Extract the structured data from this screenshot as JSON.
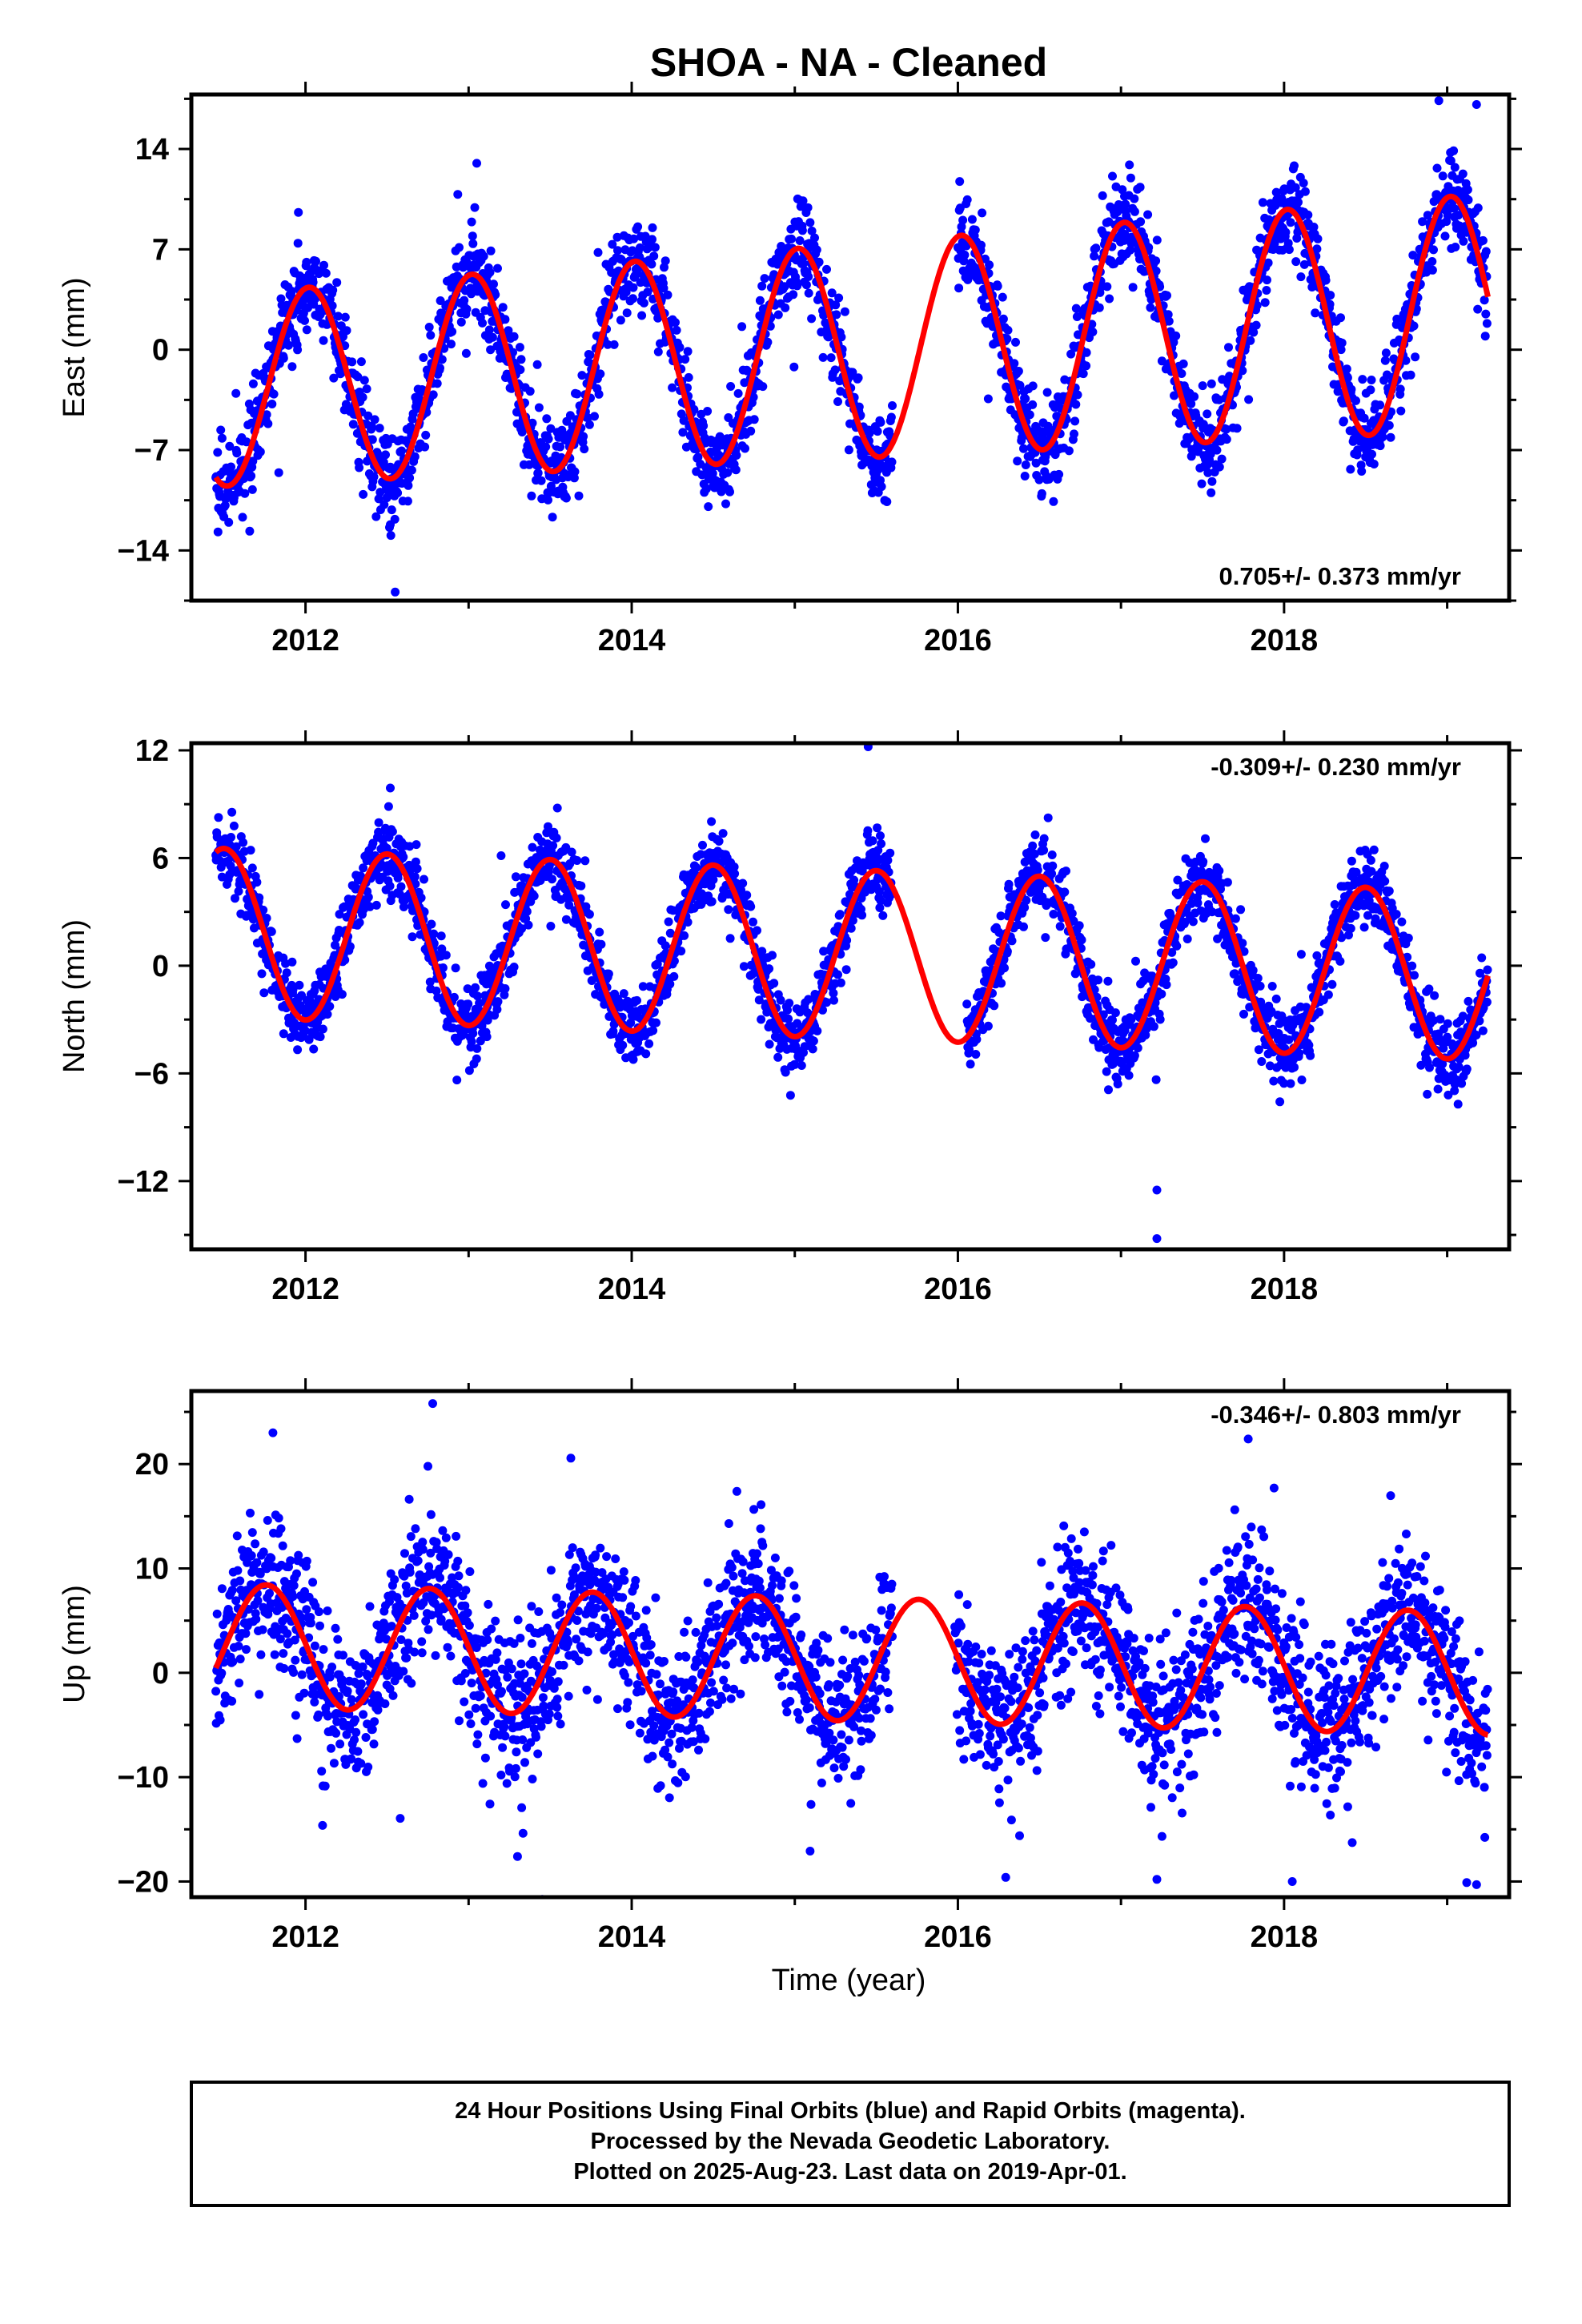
{
  "figure": {
    "title": "SHOA  - NA - Cleaned",
    "xlabel": "Time (year)",
    "footer": [
      "24 Hour Positions Using Final Orbits (blue) and Rapid Orbits (magenta).",
      "Processed by the Nevada Geodetic Laboratory.",
      "Plotted on 2025-Aug-23. Last data on 2019-Apr-01."
    ],
    "colors": {
      "points": "#0000ff",
      "model": "#ff0000",
      "frame": "#000000"
    }
  },
  "chart_data": [
    {
      "type": "scatter",
      "name": "east",
      "ylabel": "East (mm)",
      "rate_label": "0.705+/- 0.373 mm/yr",
      "xlim": [
        2011.3,
        2019.38
      ],
      "ylim": [
        -17.5,
        17.8
      ],
      "xticks": [
        2012,
        2014,
        2016,
        2018
      ],
      "yticks": [
        14,
        7,
        0,
        -7,
        -14
      ],
      "data_range": [
        2011.45,
        2019.25
      ],
      "gap": [
        2015.6,
        2016.0
      ],
      "model": {
        "mean": -0.35,
        "rate": 0.705,
        "amplitude": 7.4,
        "amp_growth": 0.2,
        "peak_phase": 0.02,
        "t0": 2015.0
      },
      "scatter_sd": 1.6,
      "outliers": [
        [
          2012.55,
          -16.9
        ],
        [
          2019.18,
          17.1
        ],
        [
          2012.52,
          -12.2
        ],
        [
          2013.05,
          13.0
        ]
      ]
    },
    {
      "type": "scatter",
      "name": "north",
      "ylabel": "North (mm)",
      "rate_label": "-0.309+/- 0.230 mm/yr",
      "xlim": [
        2011.3,
        2019.38
      ],
      "ylim": [
        -15.8,
        12.4
      ],
      "xticks": [
        2012,
        2014,
        2016,
        2018
      ],
      "yticks": [
        12,
        6,
        0,
        -6,
        -12
      ],
      "data_range": [
        2011.45,
        2019.25
      ],
      "gap": [
        2015.6,
        2016.05
      ],
      "model": {
        "mean": 0.75,
        "rate": -0.309,
        "amplitude": 4.7,
        "amp_growth": 0.0,
        "peak_phase": 0.5,
        "t0": 2015.0
      },
      "scatter_sd": 1.05,
      "outliers": [
        [
          2015.45,
          12.2
        ],
        [
          2017.22,
          -12.5
        ],
        [
          2017.22,
          -15.2
        ],
        [
          2012.52,
          9.9
        ]
      ]
    },
    {
      "type": "scatter",
      "name": "up",
      "ylabel": "Up (mm)",
      "rate_label": "-0.346+/- 0.803 mm/yr",
      "xlim": [
        2011.3,
        2019.38
      ],
      "ylim": [
        -21.5,
        27.0
      ],
      "xticks": [
        2012,
        2014,
        2016,
        2018
      ],
      "yticks": [
        20,
        10,
        0,
        -10,
        -20
      ],
      "data_range": [
        2011.45,
        2019.25
      ],
      "gap": [
        2015.6,
        2015.98
      ],
      "model": {
        "mean": 1.4,
        "rate": -0.346,
        "amplitude": 5.9,
        "amp_growth": 0.0,
        "peak_phase": 0.76,
        "t0": 2015.0
      },
      "scatter_sd": 3.6,
      "outliers": [
        [
          2012.78,
          25.8
        ],
        [
          2011.8,
          23.0
        ],
        [
          2017.78,
          22.4
        ],
        [
          2013.3,
          -17.6
        ],
        [
          2017.22,
          -19.8
        ],
        [
          2018.05,
          -20.0
        ],
        [
          2019.18,
          -20.3
        ],
        [
          2019.12,
          -20.1
        ]
      ]
    }
  ]
}
